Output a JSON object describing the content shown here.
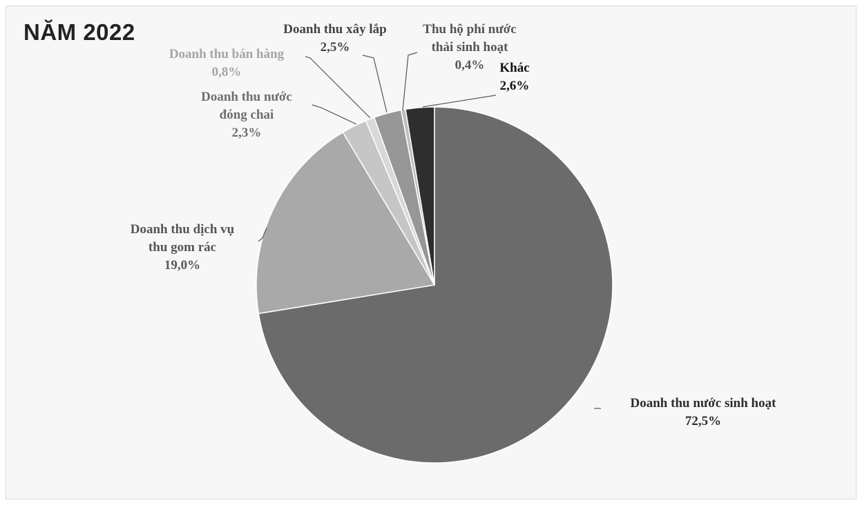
{
  "title": "NĂM 2022",
  "colors": {
    "background": "#f7f7f7",
    "leader_line": "#555555"
  },
  "chart_data": {
    "type": "pie",
    "title": "NĂM 2022",
    "unit": "%",
    "start_angle_deg": 0,
    "direction": "clockwise",
    "slices": [
      {
        "name": "Doanh thu nước sinh hoạt",
        "value": 72.5,
        "value_label": "72,5%",
        "label_lines": [
          "Doanh thu nước sinh hoạt"
        ],
        "color": "#6b6b6b",
        "label_color": "#2d2d2d"
      },
      {
        "name": "Doanh thu dịch vụ thu gom rác",
        "value": 19.0,
        "value_label": "19,0%",
        "label_lines": [
          "Doanh thu dịch vụ",
          "thu gom rác"
        ],
        "color": "#a9a9a9",
        "label_color": "#555555"
      },
      {
        "name": "Doanh thu nước đóng chai",
        "value": 2.3,
        "value_label": "2,3%",
        "label_lines": [
          "Doanh thu nước",
          "đóng chai"
        ],
        "color": "#c6c6c6",
        "label_color": "#6e6e6e"
      },
      {
        "name": "Doanh thu bán hàng",
        "value": 0.8,
        "value_label": "0,8%",
        "label_lines": [
          "Doanh thu bán hàng"
        ],
        "color": "#d8d8d8",
        "label_color": "#a5a5a5"
      },
      {
        "name": "Doanh thu xây lắp",
        "value": 2.5,
        "value_label": "2,5%",
        "label_lines": [
          "Doanh thu xây lắp"
        ],
        "color": "#979797",
        "label_color": "#444444"
      },
      {
        "name": "Thu hộ phí nước thải sinh hoạt",
        "value": 0.4,
        "value_label": "0,4%",
        "label_lines": [
          "Thu hộ phí nước",
          "thải sinh hoạt"
        ],
        "color": "#bdbdbd",
        "label_color": "#555555"
      },
      {
        "name": "Khác",
        "value": 2.6,
        "value_label": "2,6%",
        "label_lines": [
          "Khác"
        ],
        "color": "#2e2e2e",
        "label_color": "#111111"
      }
    ]
  }
}
